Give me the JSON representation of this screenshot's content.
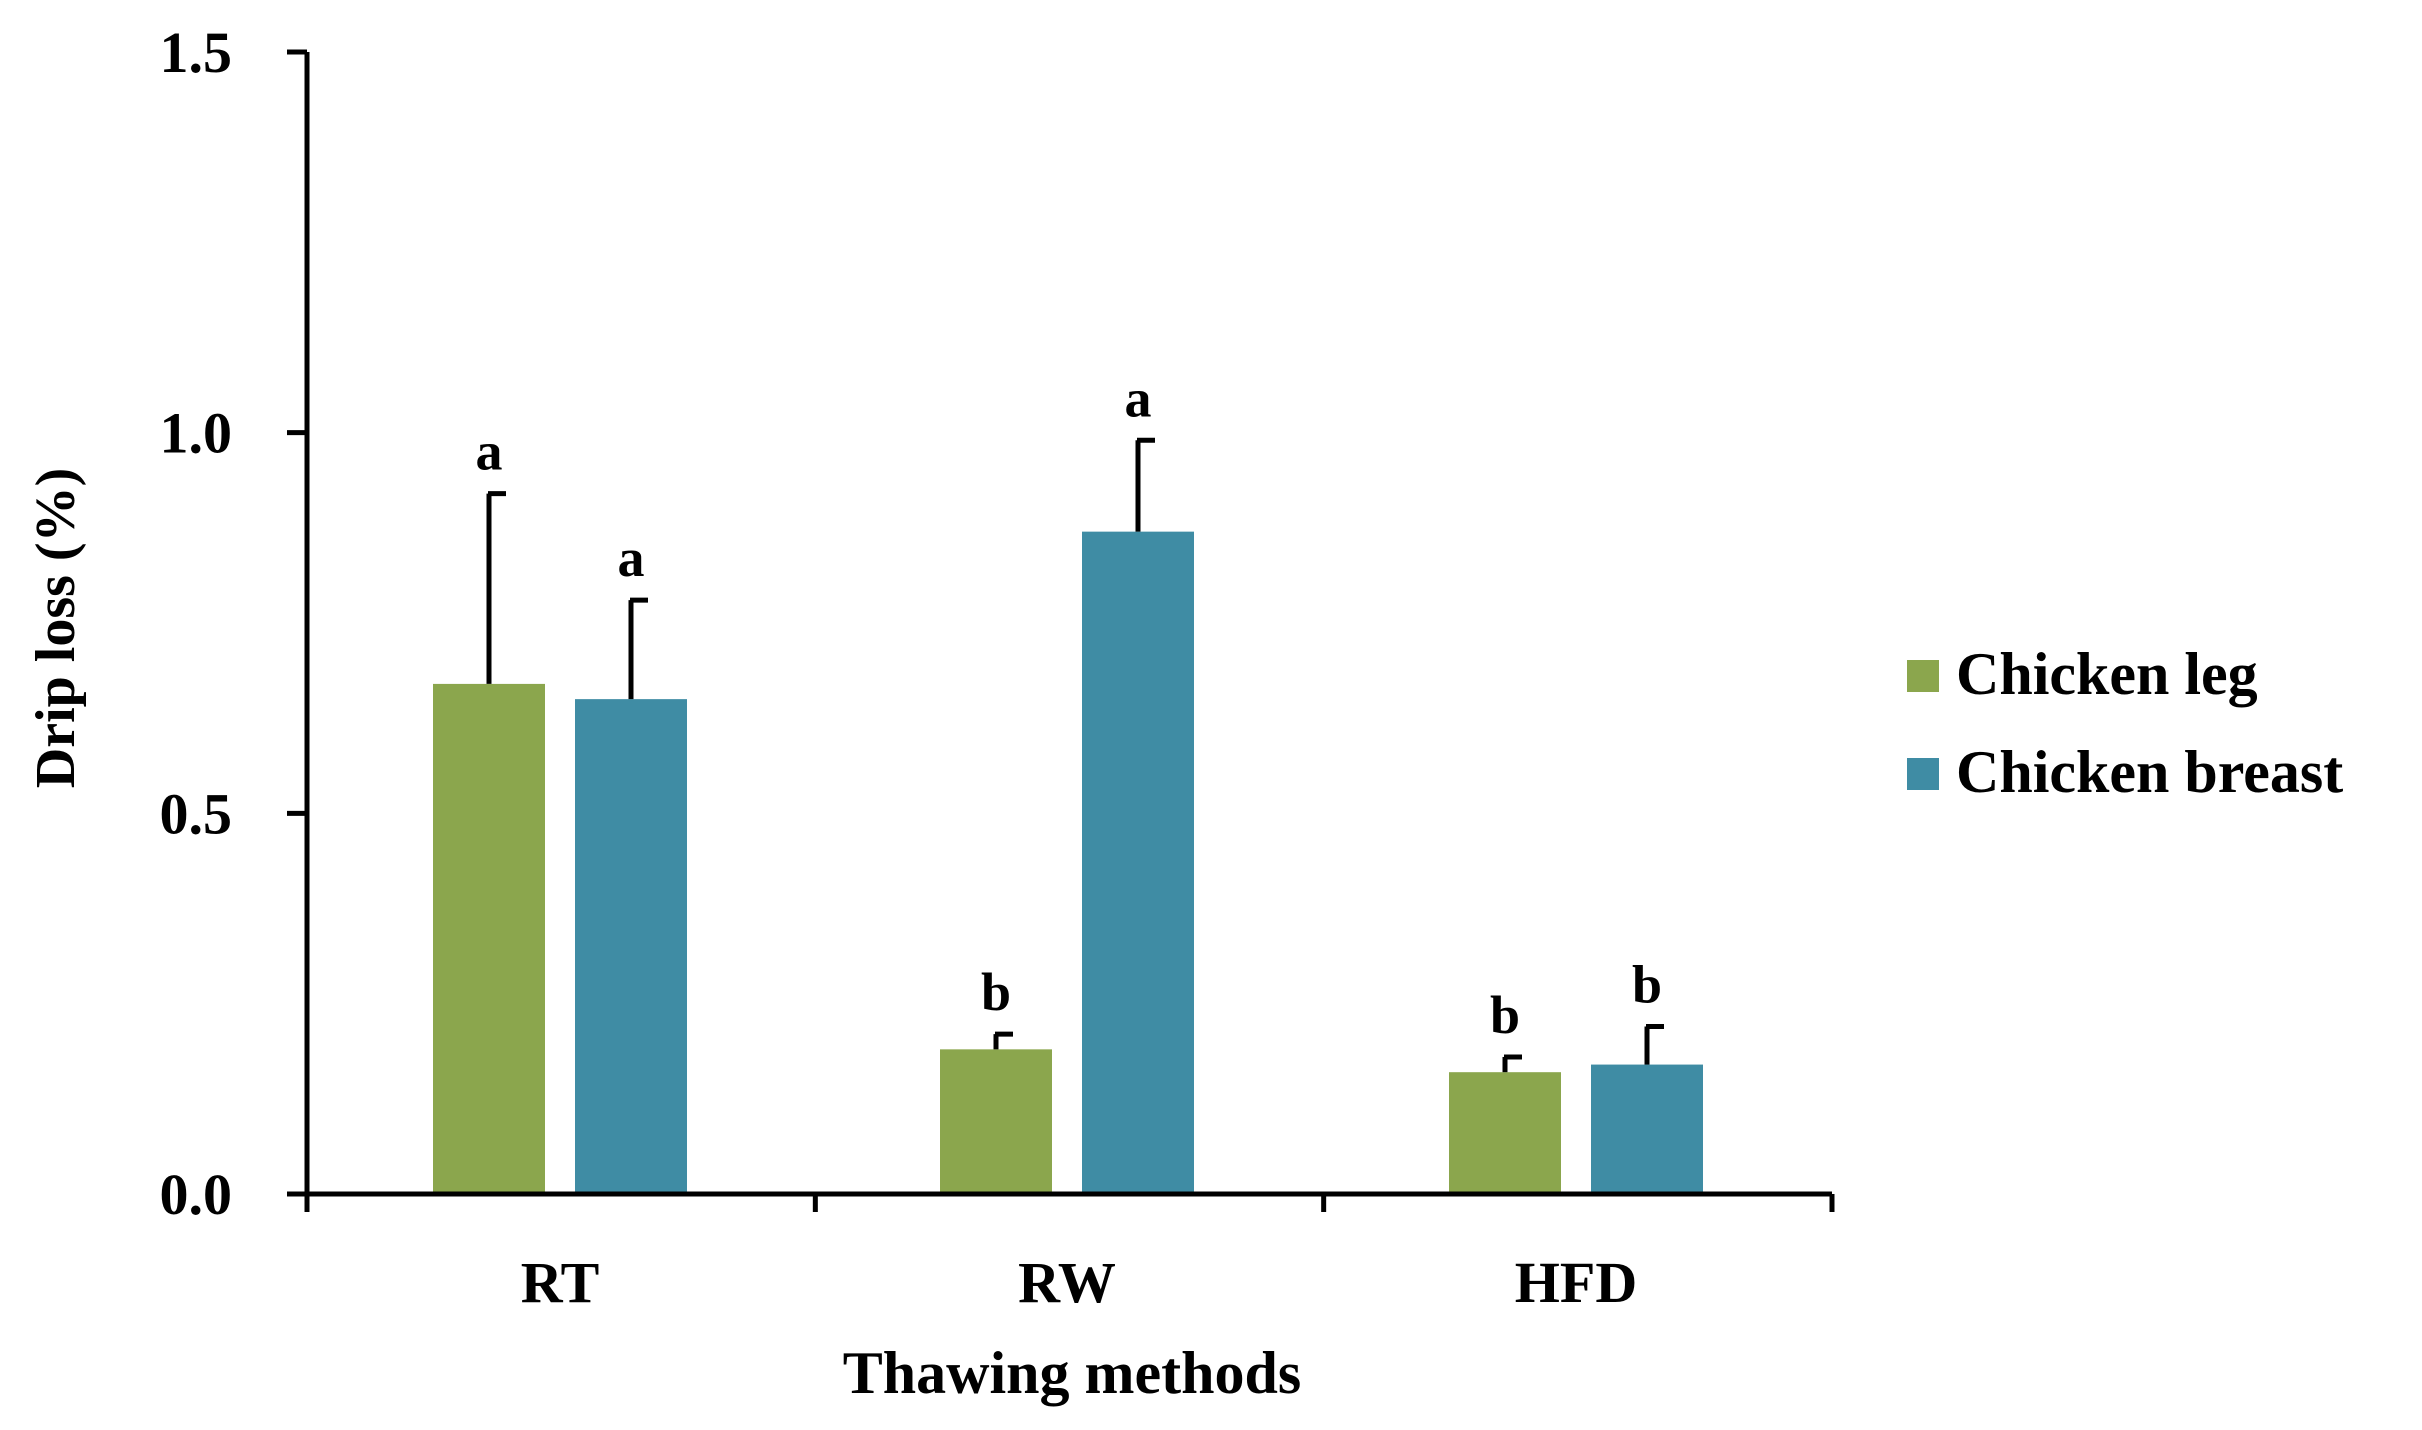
{
  "chart_data": {
    "type": "bar",
    "title": "",
    "xlabel": "Thawing methods",
    "ylabel": "Drip loss (%)",
    "ylim": [
      0,
      1.5
    ],
    "yticks": [
      0,
      0.5,
      1.0,
      1.5
    ],
    "ytick_labels": [
      "0.0",
      "0.5",
      "1.0",
      "1.5"
    ],
    "categories": [
      "RT",
      "RW",
      "HFD"
    ],
    "legend_position": "right",
    "series": [
      {
        "name": "Chicken leg",
        "color": "#8ba64d",
        "values": [
          0.67,
          0.19,
          0.16
        ],
        "errors": [
          0.25,
          0.02,
          0.02
        ],
        "labels": [
          "a",
          "b",
          "b"
        ]
      },
      {
        "name": "Chicken breast",
        "color": "#3f8ca4",
        "values": [
          0.65,
          0.87,
          0.17
        ],
        "errors": [
          0.13,
          0.12,
          0.05
        ],
        "labels": [
          "a",
          "a",
          "b"
        ]
      }
    ]
  }
}
